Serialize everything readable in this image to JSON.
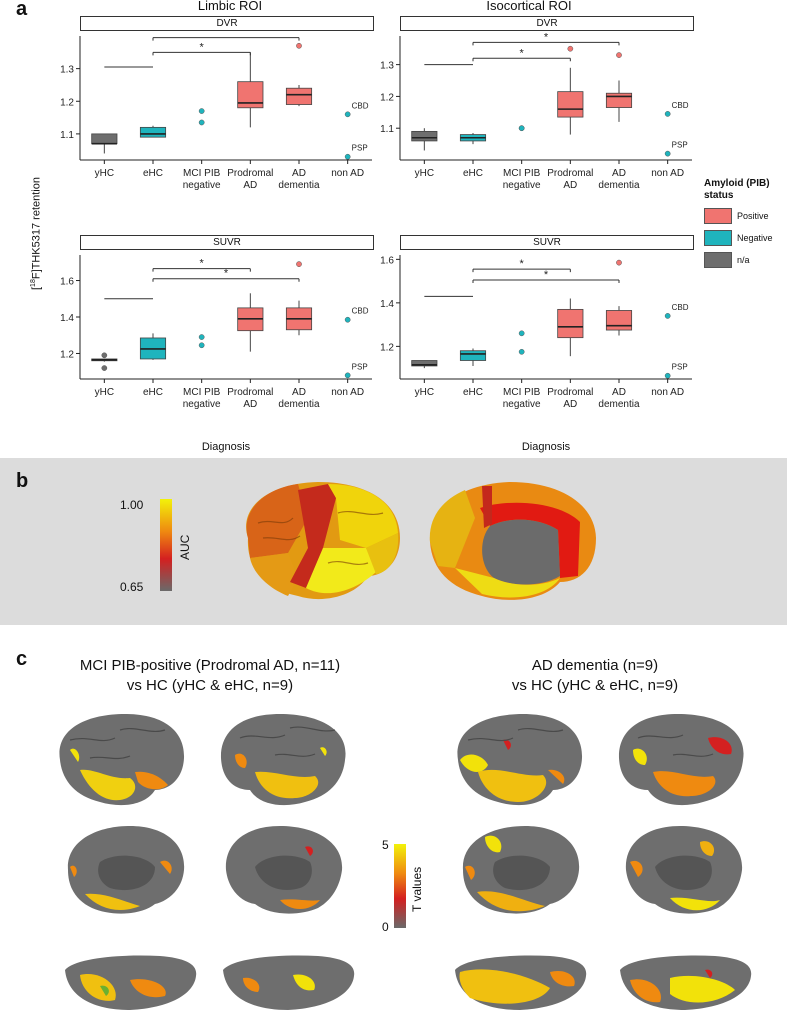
{
  "panel_a": {
    "letter": "a",
    "columns": [
      "Limbic ROI",
      "Isocortical ROI"
    ],
    "y_axis_label": "[18F]THK5317 retention",
    "y_axis_sup": "18",
    "y_axis_rest": "F]THK5317 retention",
    "x_axis_title": "Diagnosis",
    "legend": {
      "title_line1": "Amyloid (PIB)",
      "title_line2": "status",
      "items": [
        {
          "label": "Positive",
          "color": "#f07470"
        },
        {
          "label": "Negative",
          "color": "#1fb4bd"
        },
        {
          "label": "n/a",
          "color": "#6e6e6e"
        }
      ]
    }
  },
  "chart_data": [
    {
      "type": "box",
      "strip": "DVR",
      "region": "Limbic ROI",
      "categories": [
        "yHC",
        "eHC",
        "MCI PIB negative",
        "Prodromal AD",
        "AD dementia",
        "non AD"
      ],
      "category_lines": [
        [
          "yHC"
        ],
        [
          "eHC"
        ],
        [
          "MCI PIB",
          "negative"
        ],
        [
          "Prodromal",
          "AD"
        ],
        [
          "AD",
          "dementia"
        ],
        [
          "non AD"
        ]
      ],
      "yticks": [
        1.1,
        1.2,
        1.3
      ],
      "ylim": [
        1.02,
        1.4
      ],
      "boxes": [
        {
          "cat": 0,
          "min": 1.04,
          "q1": 1.07,
          "med": 1.07,
          "q3": 1.1,
          "max": 1.1,
          "status": "n/a"
        },
        {
          "cat": 1,
          "min": 1.09,
          "q1": 1.09,
          "med": 1.1,
          "q3": 1.12,
          "max": 1.125,
          "status": "Negative"
        },
        {
          "cat": 3,
          "min": 1.12,
          "q1": 1.18,
          "med": 1.195,
          "q3": 1.26,
          "max": 1.35,
          "status": "Positive"
        },
        {
          "cat": 4,
          "min": 1.185,
          "q1": 1.19,
          "med": 1.22,
          "q3": 1.24,
          "max": 1.25,
          "status": "Positive"
        }
      ],
      "points": [
        {
          "cat": 2,
          "y": 1.17,
          "status": "Negative"
        },
        {
          "cat": 2,
          "y": 1.135,
          "status": "Negative"
        },
        {
          "cat": 4,
          "y": 1.37,
          "status": "Positive",
          "outlier": true
        },
        {
          "cat": 5,
          "y": 1.16,
          "status": "Negative",
          "label": "CBD"
        },
        {
          "cat": 5,
          "y": 1.03,
          "status": "Negative",
          "label": "PSP"
        }
      ],
      "comparisons": [
        {
          "from": 1,
          "to": 4,
          "y": 1.395,
          "label": "*"
        },
        {
          "from": 1,
          "to": 3,
          "y": 1.35,
          "label": "*"
        },
        {
          "from": 0,
          "to": 1,
          "y": 1.305,
          "label": ""
        }
      ]
    },
    {
      "type": "box",
      "strip": "DVR",
      "region": "Isocortical ROI",
      "categories": [
        "yHC",
        "eHC",
        "MCI PIB negative",
        "Prodromal AD",
        "AD dementia",
        "non AD"
      ],
      "category_lines": [
        [
          "yHC"
        ],
        [
          "eHC"
        ],
        [
          "MCI PIB",
          "negative"
        ],
        [
          "Prodromal",
          "AD"
        ],
        [
          "AD",
          "dementia"
        ],
        [
          "non AD"
        ]
      ],
      "yticks": [
        1.1,
        1.2,
        1.3
      ],
      "ylim": [
        1.0,
        1.39
      ],
      "boxes": [
        {
          "cat": 0,
          "min": 1.03,
          "q1": 1.06,
          "med": 1.07,
          "q3": 1.09,
          "max": 1.1,
          "status": "n/a"
        },
        {
          "cat": 1,
          "min": 1.05,
          "q1": 1.06,
          "med": 1.07,
          "q3": 1.08,
          "max": 1.085,
          "status": "Negative"
        },
        {
          "cat": 3,
          "min": 1.08,
          "q1": 1.135,
          "med": 1.16,
          "q3": 1.215,
          "max": 1.29,
          "status": "Positive"
        },
        {
          "cat": 4,
          "min": 1.12,
          "q1": 1.165,
          "med": 1.2,
          "q3": 1.21,
          "max": 1.25,
          "status": "Positive"
        }
      ],
      "points": [
        {
          "cat": 2,
          "y": 1.1,
          "status": "Negative"
        },
        {
          "cat": 2,
          "y": 1.1,
          "status": "Negative"
        },
        {
          "cat": 3,
          "y": 1.35,
          "status": "Positive",
          "outlier": true
        },
        {
          "cat": 4,
          "y": 1.33,
          "status": "Positive",
          "outlier": true
        },
        {
          "cat": 5,
          "y": 1.145,
          "status": "Negative",
          "label": "CBD"
        },
        {
          "cat": 5,
          "y": 1.02,
          "status": "Negative",
          "label": "PSP"
        }
      ],
      "comparisons": [
        {
          "from": 1,
          "to": 4,
          "y": 1.37,
          "label": "*"
        },
        {
          "from": 1,
          "to": 3,
          "y": 1.32,
          "label": "*"
        },
        {
          "from": 0,
          "to": 1,
          "y": 1.3,
          "label": ""
        }
      ]
    },
    {
      "type": "box",
      "strip": "SUVR",
      "region": "Limbic ROI",
      "categories": [
        "yHC",
        "eHC",
        "MCI PIB negative",
        "Prodromal AD",
        "AD dementia",
        "non AD"
      ],
      "category_lines": [
        [
          "yHC"
        ],
        [
          "eHC"
        ],
        [
          "MCI PIB",
          "negative"
        ],
        [
          "Prodromal",
          "AD"
        ],
        [
          "AD",
          "dementia"
        ],
        [
          "non AD"
        ]
      ],
      "yticks": [
        1.2,
        1.4,
        1.6
      ],
      "ylim": [
        1.06,
        1.74
      ],
      "boxes": [
        {
          "cat": 0,
          "min": 1.155,
          "q1": 1.16,
          "med": 1.165,
          "q3": 1.17,
          "max": 1.17,
          "status": "n/a"
        },
        {
          "cat": 1,
          "min": 1.165,
          "q1": 1.17,
          "med": 1.225,
          "q3": 1.285,
          "max": 1.31,
          "status": "Negative"
        },
        {
          "cat": 3,
          "min": 1.21,
          "q1": 1.325,
          "med": 1.39,
          "q3": 1.45,
          "max": 1.53,
          "status": "Positive"
        },
        {
          "cat": 4,
          "min": 1.3,
          "q1": 1.33,
          "med": 1.39,
          "q3": 1.45,
          "max": 1.49,
          "status": "Positive"
        }
      ],
      "points": [
        {
          "cat": 0,
          "y": 1.19,
          "status": "n/a"
        },
        {
          "cat": 0,
          "y": 1.12,
          "status": "n/a"
        },
        {
          "cat": 2,
          "y": 1.29,
          "status": "Negative"
        },
        {
          "cat": 2,
          "y": 1.245,
          "status": "Negative"
        },
        {
          "cat": 4,
          "y": 1.69,
          "status": "Positive",
          "outlier": true
        },
        {
          "cat": 5,
          "y": 1.385,
          "status": "Negative",
          "label": "CBD"
        },
        {
          "cat": 5,
          "y": 1.08,
          "status": "Negative",
          "label": "PSP"
        }
      ],
      "comparisons": [
        {
          "from": 1,
          "to": 3,
          "y": 1.665,
          "label": "*"
        },
        {
          "from": 1,
          "to": 4,
          "y": 1.61,
          "label": "*"
        },
        {
          "from": 0,
          "to": 1,
          "y": 1.5,
          "label": ""
        }
      ]
    },
    {
      "type": "box",
      "strip": "SUVR",
      "region": "Isocortical ROI",
      "categories": [
        "yHC",
        "eHC",
        "MCI PIB negative",
        "Prodromal AD",
        "AD dementia",
        "non AD"
      ],
      "category_lines": [
        [
          "yHC"
        ],
        [
          "eHC"
        ],
        [
          "MCI PIB",
          "negative"
        ],
        [
          "Prodromal",
          "AD"
        ],
        [
          "AD",
          "dementia"
        ],
        [
          "non AD"
        ]
      ],
      "yticks": [
        1.2,
        1.4,
        1.6
      ],
      "ylim": [
        1.05,
        1.62
      ],
      "boxes": [
        {
          "cat": 0,
          "min": 1.1,
          "q1": 1.11,
          "med": 1.115,
          "q3": 1.135,
          "max": 1.135,
          "status": "n/a"
        },
        {
          "cat": 1,
          "min": 1.11,
          "q1": 1.135,
          "med": 1.165,
          "q3": 1.18,
          "max": 1.19,
          "status": "Negative"
        },
        {
          "cat": 3,
          "min": 1.155,
          "q1": 1.24,
          "med": 1.29,
          "q3": 1.37,
          "max": 1.42,
          "status": "Positive"
        },
        {
          "cat": 4,
          "min": 1.25,
          "q1": 1.275,
          "med": 1.295,
          "q3": 1.365,
          "max": 1.385,
          "status": "Positive"
        }
      ],
      "points": [
        {
          "cat": 2,
          "y": 1.26,
          "status": "Negative"
        },
        {
          "cat": 2,
          "y": 1.175,
          "status": "Negative"
        },
        {
          "cat": 4,
          "y": 1.585,
          "status": "Positive",
          "outlier": true
        },
        {
          "cat": 5,
          "y": 1.34,
          "status": "Negative",
          "label": "CBD"
        },
        {
          "cat": 5,
          "y": 1.065,
          "status": "Negative",
          "label": "PSP"
        }
      ],
      "comparisons": [
        {
          "from": 1,
          "to": 3,
          "y": 1.555,
          "label": "*"
        },
        {
          "from": 1,
          "to": 4,
          "y": 1.505,
          "label": "*"
        },
        {
          "from": 0,
          "to": 1,
          "y": 1.43,
          "label": ""
        }
      ]
    }
  ],
  "panel_b": {
    "letter": "b",
    "colorbar": {
      "max_label": "1.00",
      "min_label": "0.65",
      "title": "AUC",
      "colors": [
        "#f2f20a",
        "#ef8a10",
        "#d42020",
        "#6a6a6a"
      ]
    }
  },
  "panel_c": {
    "letter": "c",
    "left_title_1": "MCI PIB-positive (Prodromal AD, n=11)",
    "left_title_2": "vs HC (yHC & eHC, n=9)",
    "right_title_1": "AD dementia (n=9)",
    "right_title_2": "vs HC (yHC & eHC, n=9)",
    "colorbar": {
      "max_label": "5",
      "min_label": "0",
      "title": "T values",
      "colors": [
        "#f2f20a",
        "#ef8a10",
        "#d42020",
        "#6a6a6a"
      ]
    }
  },
  "colors": {
    "positive": "#f07470",
    "negative": "#1fb4bd",
    "na": "#6e6e6e",
    "panel_b_bg": "#dcdcdc",
    "cortex_grey": "#6b6b6b"
  }
}
